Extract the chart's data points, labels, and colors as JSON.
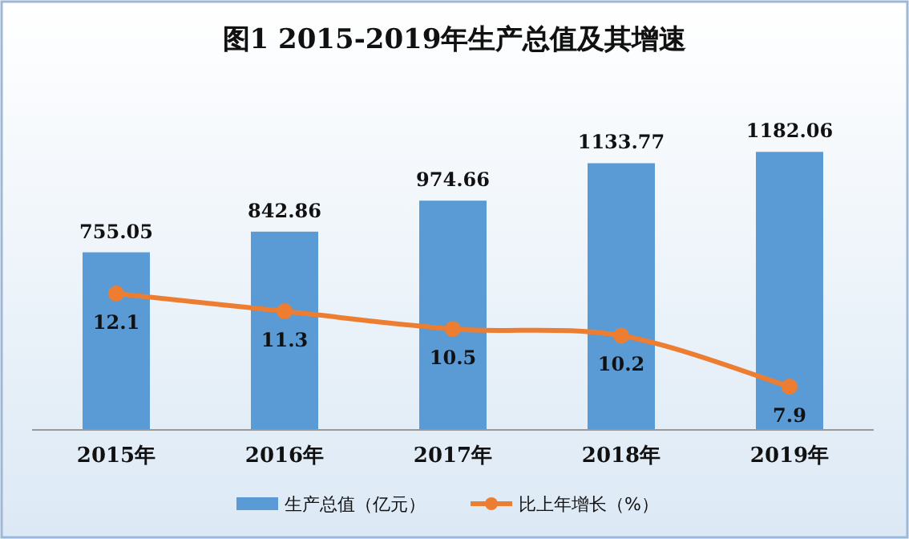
{
  "chart_data": {
    "type": "bar",
    "title": "图1 2015-2019年生产总值及其增速",
    "categories": [
      "2015年",
      "2016年",
      "2017年",
      "2018年",
      "2019年"
    ],
    "series": [
      {
        "name": "生产总值（亿元）",
        "color": "#5b9bd5",
        "values": [
          755.05,
          842.86,
          974.66,
          1133.77,
          1182.06
        ]
      },
      {
        "name": "比上年增长（%）",
        "type": "line",
        "axis": "y2",
        "color": "#ed7d31",
        "marker": "circle",
        "values": [
          12.1,
          11.3,
          10.5,
          10.2,
          7.9
        ]
      }
    ],
    "data_labels": true,
    "legend": "bottom",
    "tick_labels": "x",
    "grid": false
  }
}
